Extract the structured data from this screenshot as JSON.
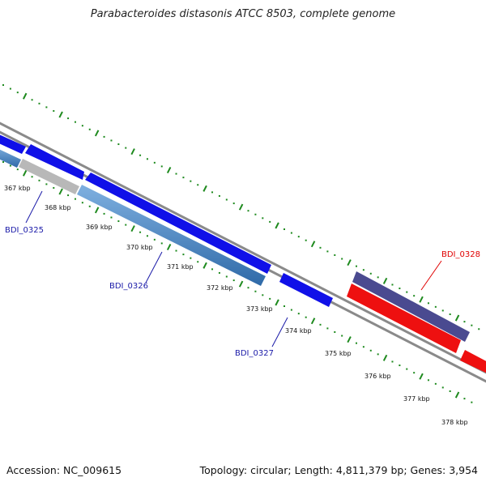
{
  "title": "Parabacteroides distasonis ATCC 8503, complete genome",
  "accession": "Accession: NC_009615",
  "topology": "Topology: circular; Length: 4,811,379 bp; Genes: 3,954",
  "tick_labels": [
    "367 kbp",
    "368 kbp",
    "369 kbp",
    "370 kbp",
    "371 kbp",
    "372 kbp",
    "373 kbp",
    "374 kbp",
    "375 kbp",
    "376 kbp",
    "377 kbp",
    "378 kbp"
  ],
  "gene_labels": [
    {
      "id": "g0325",
      "text": "BDI_0325",
      "color": "#1a1aa8"
    },
    {
      "id": "g0326",
      "text": "BDI_0326",
      "color": "#1a1aa8"
    },
    {
      "id": "g0327",
      "text": "BDI_0327",
      "color": "#1a1aa8"
    },
    {
      "id": "g0328",
      "text": "BDI_0328",
      "color": "#e00000"
    }
  ],
  "colors": {
    "tick": "#1e8a1e",
    "backbone": "#8a8a8a",
    "forward_gene": "#1010e8",
    "steel_gene": "#4a85c0",
    "grey_gene": "#b8b8b8",
    "slate_gene": "#4a4a90",
    "reverse_gene": "#ee1010"
  }
}
